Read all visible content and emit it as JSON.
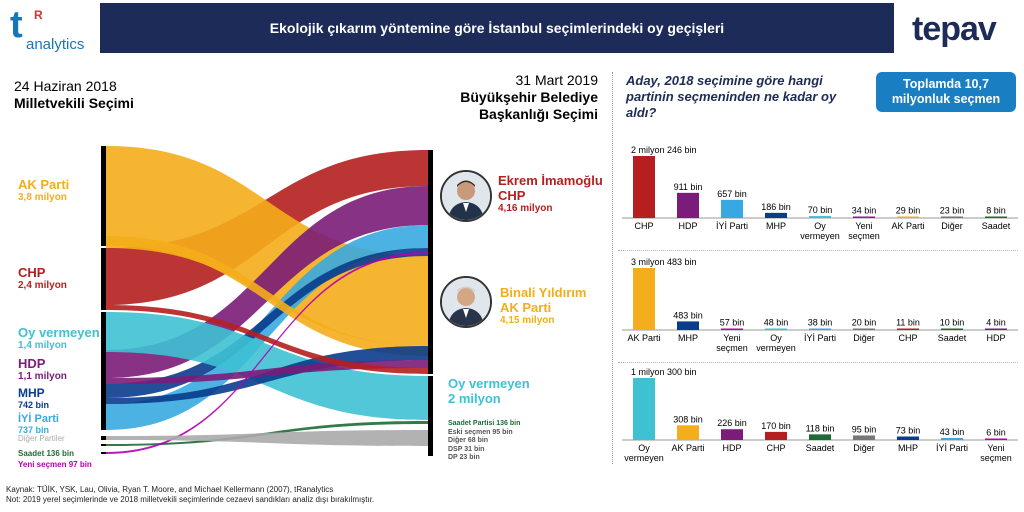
{
  "header": {
    "title": "Ekolojik çıkarım yöntemine göre İstanbul seçimlerindeki oy geçişleri"
  },
  "logos": {
    "t": "t",
    "r": "R",
    "analytics": "analytics",
    "tepav": "tepav"
  },
  "left_title": {
    "date": "24 Haziran 2018",
    "name": "Milletvekili Seçimi"
  },
  "mid_title": {
    "date": "31 Mart 2019",
    "line1": "Büyükşehir Belediye",
    "line2": "Başkanlığı Seçimi"
  },
  "question": {
    "line1": "Aday, 2018 seçimine göre hangi",
    "line2": "partinin seçmeninden ne kadar oy",
    "line3": "aldı?"
  },
  "total_box": {
    "line1": "Toplamda 10,7",
    "line2": "milyonluk seçmen"
  },
  "sources": [
    {
      "name": "AK Parti",
      "value": "3,8 milyon",
      "color": "#f4ad1b"
    },
    {
      "name": "CHP",
      "value": "2,4 milyon",
      "color": "#b51f1f"
    },
    {
      "name": "Oy vermeyen",
      "value": "1,4 milyon",
      "color": "#3ec1d3"
    },
    {
      "name": "HDP",
      "value": "1,1 milyon",
      "color": "#7a1c78"
    },
    {
      "name": "MHP",
      "value": "742 bin",
      "color": "#0a3c8c"
    },
    {
      "name": "İYİ Parti",
      "value": "737 bin",
      "color": "#38a8e0"
    },
    {
      "name": "Diğer Partiler",
      "value": "",
      "color": "#aaaaaa"
    },
    {
      "name": "Saadet 136 bin",
      "value": "",
      "color": "#1d6b35"
    },
    {
      "name": "Yeni seçmen 97 bin",
      "value": "",
      "color": "#b300b3"
    }
  ],
  "targets": [
    {
      "name": "Ekrem İmamoğlu",
      "party": "CHP",
      "value": "4,16 milyon",
      "color": "#b51f1f"
    },
    {
      "name": "Binali Yıldırım",
      "party": "AK Parti",
      "value": "4,15 milyon",
      "color": "#f4ad1b"
    },
    {
      "name": "Oy vermeyen",
      "party": "",
      "value": "2 milyon",
      "color": "#3ec1d3"
    }
  ],
  "small_targets": [
    {
      "label": "Saadet Partisi 136 bin",
      "color": "#1d6b35"
    },
    {
      "label": "Eski seçmen 95 bin",
      "color": "#555555"
    },
    {
      "label": "Diğer 68 bin",
      "color": "#555555"
    },
    {
      "label": "DSP 31 bin",
      "color": "#555555"
    },
    {
      "label": "DP 23 bin",
      "color": "#555555"
    }
  ],
  "chart_data": [
    {
      "type": "bar",
      "title": "Ekrem İmamoğlu",
      "categories": [
        "CHP",
        "HDP",
        "İYİ Parti",
        "MHP",
        "Oy vermeyen",
        "Yeni seçmen",
        "AK Parti",
        "Diğer",
        "Saadet"
      ],
      "values": [
        2246,
        911,
        657,
        186,
        70,
        34,
        29,
        23,
        8
      ],
      "value_labels": [
        "2 milyon 246 bin",
        "911 bin",
        "657 bin",
        "186 bin",
        "70 bin",
        "34 bin",
        "29 bin",
        "23 bin",
        "8 bin"
      ],
      "colors": [
        "#b51f1f",
        "#7a1c78",
        "#38a8e0",
        "#0a3c8c",
        "#3ec1d3",
        "#b300b3",
        "#f4ad1b",
        "#777777",
        "#1d6b35"
      ],
      "unit": "bin"
    },
    {
      "type": "bar",
      "title": "Binali Yıldırım",
      "categories": [
        "AK Parti",
        "MHP",
        "Yeni seçmen",
        "Oy vermeyen",
        "İYİ Parti",
        "Diğer",
        "CHP",
        "Saadet",
        "HDP"
      ],
      "values": [
        3483,
        483,
        57,
        48,
        38,
        20,
        11,
        10,
        4
      ],
      "value_labels": [
        "3 milyon 483 bin",
        "483 bin",
        "57 bin",
        "48 bin",
        "38 bin",
        "20 bin",
        "11 bin",
        "10 bin",
        "4 bin"
      ],
      "colors": [
        "#f4ad1b",
        "#0a3c8c",
        "#b300b3",
        "#3ec1d3",
        "#38a8e0",
        "#777777",
        "#b51f1f",
        "#1d6b35",
        "#7a1c78"
      ],
      "unit": "bin"
    },
    {
      "type": "bar",
      "title": "Oy vermeyen",
      "categories": [
        "Oy vermeyen",
        "AK Parti",
        "HDP",
        "CHP",
        "Saadet",
        "Diğer",
        "MHP",
        "İYİ Parti",
        "Yeni seçmen"
      ],
      "values": [
        1300,
        308,
        226,
        170,
        118,
        95,
        73,
        43,
        6
      ],
      "value_labels": [
        "1 milyon 300 bin",
        "308 bin",
        "226 bin",
        "170 bin",
        "118 bin",
        "95 bin",
        "73 bin",
        "43 bin",
        "6 bin"
      ],
      "colors": [
        "#3ec1d3",
        "#f4ad1b",
        "#7a1c78",
        "#b51f1f",
        "#1d6b35",
        "#777777",
        "#0a3c8c",
        "#38a8e0",
        "#b300b3"
      ],
      "unit": "bin"
    }
  ],
  "footer": {
    "line1": "Kaynak: TÜİK, YSK, Lau, Olivia, Ryan T. Moore, and Michael Kellermann (2007), tRanalytics",
    "line2": "Not: 2019 yerel seçimlerinde ve 2018 milletvekili seçimlerinde cezaevi sandıkları analiz dışı bırakılmıştır."
  }
}
